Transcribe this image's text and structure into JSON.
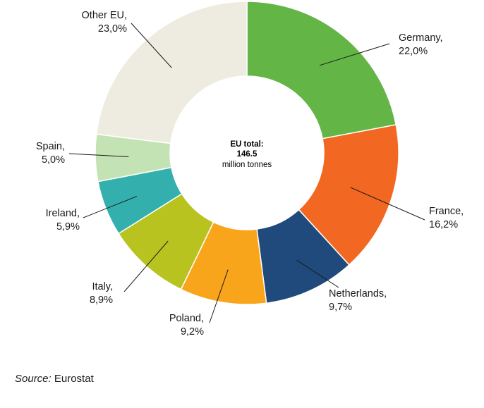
{
  "chart_data": {
    "type": "pie",
    "variant": "donut",
    "center_label": {
      "line1": "EU total:",
      "line2": "146.5",
      "line3": "million tonnes"
    },
    "slices": [
      {
        "label": "Germany,",
        "value_text": "22,0%",
        "value": 22.0,
        "color": "#63b545"
      },
      {
        "label": "France,",
        "value_text": "16,2%",
        "value": 16.2,
        "color": "#f26722"
      },
      {
        "label": "Netherlands,",
        "value_text": "9,7%",
        "value": 9.7,
        "color": "#204a7b"
      },
      {
        "label": "Poland,",
        "value_text": "9,2%",
        "value": 9.2,
        "color": "#f9a51c"
      },
      {
        "label": "Italy,",
        "value_text": "8,9%",
        "value": 8.9,
        "color": "#b9c31f"
      },
      {
        "label": "Ireland,",
        "value_text": "5,9%",
        "value": 5.9,
        "color": "#33b0ad"
      },
      {
        "label": "Spain,",
        "value_text": "5,0%",
        "value": 5.0,
        "color": "#c4e3b4"
      },
      {
        "label": "Other EU,",
        "value_text": "23,0%",
        "value": 23.0,
        "color": "#eeebe0"
      }
    ]
  },
  "source": {
    "prefix": "Source:",
    "text": "Eurostat"
  }
}
